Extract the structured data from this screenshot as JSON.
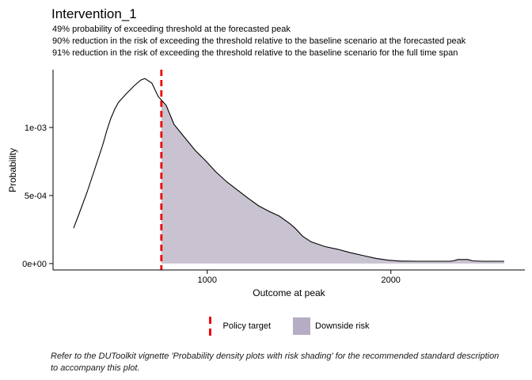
{
  "header": {
    "title": "Intervention_1",
    "subtitle_lines": [
      "49% probability of exceeding threshold at the forecasted peak",
      "90% reduction in the risk of exceeding the threshold relative to the baseline scenario at the forecasted peak",
      "91% reduction in the risk of exceeding the threshold relative to the baseline scenario for the full time span"
    ]
  },
  "chart_data": {
    "type": "area",
    "title": "Intervention_1",
    "xlabel": "Outcome at peak",
    "ylabel": "Probability",
    "grid": false,
    "xlim": [
      160,
      2730
    ],
    "ylim": [
      -4.7e-05,
      0.001425
    ],
    "x_ticks": [
      {
        "value": 1000,
        "label": "1000"
      },
      {
        "value": 2000,
        "label": "2000"
      }
    ],
    "y_ticks": [
      {
        "value": 0.0,
        "label": "0e+00"
      },
      {
        "value": 0.0005,
        "label": "5e-04"
      },
      {
        "value": 0.001,
        "label": "1e-03"
      }
    ],
    "density_curve": {
      "x": [
        272,
        302,
        345,
        388,
        431,
        453,
        474,
        496,
        517,
        560,
        603,
        638,
        660,
        698,
        733,
        776,
        819,
        875,
        935,
        991,
        1047,
        1108,
        1164,
        1220,
        1280,
        1336,
        1392,
        1453,
        1478,
        1520,
        1565,
        1640,
        1711,
        1780,
        1853,
        1920,
        1983,
        2050,
        2150,
        2250,
        2320,
        2340,
        2365,
        2420,
        2445,
        2500,
        2560,
        2617
      ],
      "y": [
        0.00026,
        0.000366,
        0.000523,
        0.000698,
        0.000872,
        0.000977,
        0.001064,
        0.001134,
        0.001186,
        0.00125,
        0.001308,
        0.001349,
        0.00136,
        0.001326,
        0.001227,
        0.001163,
        0.001023,
        0.00093,
        0.000831,
        0.000756,
        0.000674,
        0.000599,
        0.000541,
        0.000483,
        0.000424,
        0.000384,
        0.000349,
        0.00029,
        0.00026,
        0.0002,
        0.00016,
        0.000125,
        0.000105,
        8e-05,
        5.8e-05,
        3.8e-05,
        2.5e-05,
        1.8e-05,
        1.7e-05,
        1.7e-05,
        1.7e-05,
        2e-05,
        3e-05,
        3e-05,
        2e-05,
        1.7e-05,
        1.7e-05,
        1.7e-05
      ]
    },
    "threshold": {
      "value": 750,
      "label": "Policy target",
      "color": "#ee0000"
    },
    "shaded_region": {
      "from": 750,
      "to": 2617,
      "label": "Downside risk",
      "fill": "#c9c3d1"
    },
    "legend_position": "bottom"
  },
  "legend": {
    "policy_target_label": "Policy target",
    "downside_risk_label": "Downside risk",
    "swatch_color": "#b5adc3",
    "key_line_color": "#ee0000"
  },
  "caption": {
    "text": "Refer to the DUToolkit vignette 'Probability density plots with risk shading' for the recommended standard description to accompany this plot."
  },
  "colors": {
    "curve": "#000000",
    "axis": "#000000",
    "area_fill": "#c9c3d1",
    "threshold_red": "#ee0000"
  }
}
